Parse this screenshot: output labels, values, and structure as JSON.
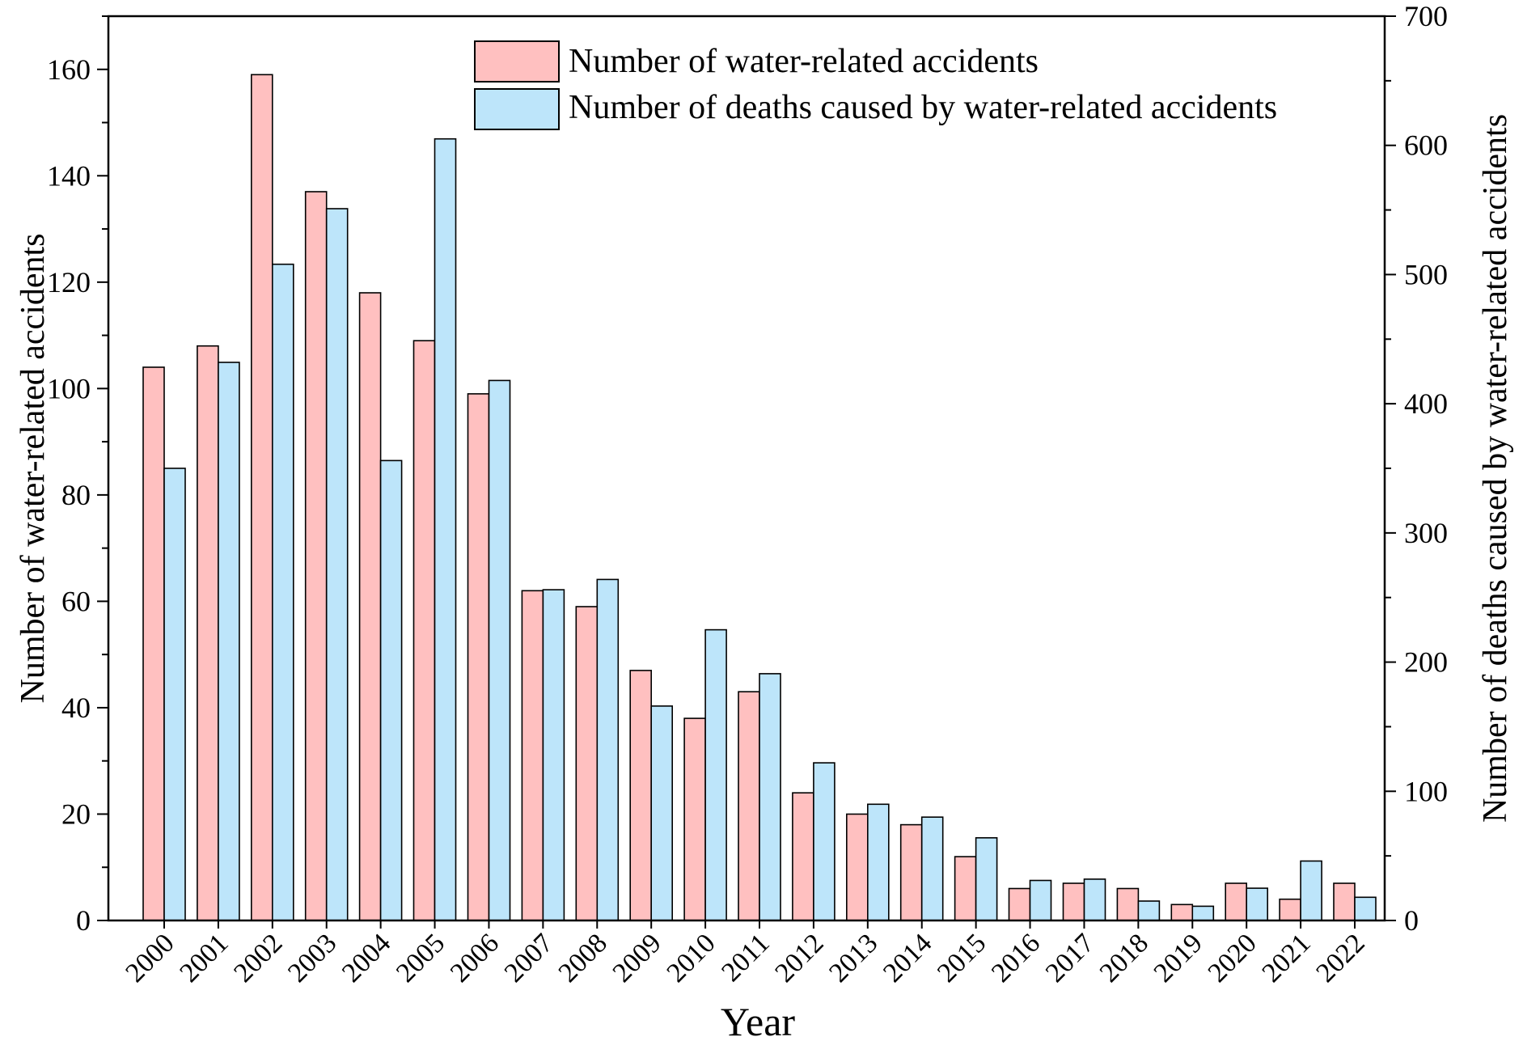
{
  "chart_data": {
    "type": "bar",
    "title": "",
    "xlabel": "Year",
    "ylabel_left": "Number of water-related accidents",
    "ylabel_right": "Number of deaths caused by water-related accidents",
    "ylim_left": [
      0,
      170
    ],
    "ylim_right": [
      0,
      700
    ],
    "yticks_left": [
      0,
      20,
      40,
      60,
      80,
      100,
      120,
      140,
      160
    ],
    "yticks_right": [
      0,
      100,
      200,
      300,
      400,
      500,
      600,
      700
    ],
    "categories": [
      "2000",
      "2001",
      "2002",
      "2003",
      "2004",
      "2005",
      "2006",
      "2007",
      "2008",
      "2009",
      "2010",
      "2011",
      "2012",
      "2013",
      "2014",
      "2015",
      "2016",
      "2017",
      "2018",
      "2019",
      "2020",
      "2021",
      "2022"
    ],
    "series": [
      {
        "name": "Number of water-related accidents",
        "axis": "left",
        "color": "#ffc0c0",
        "values": [
          104,
          108,
          159,
          137,
          118,
          109,
          99,
          62,
          59,
          47,
          38,
          43,
          24,
          20,
          18,
          12,
          6,
          7,
          6,
          3,
          7,
          4,
          7
        ]
      },
      {
        "name": "Number of deaths caused by water-related accidents",
        "axis": "right",
        "color": "#bde5fa",
        "values": [
          350,
          432,
          508,
          551,
          356,
          605,
          418,
          256,
          264,
          166,
          225,
          191,
          122,
          90,
          80,
          64,
          31,
          32,
          15,
          11,
          25,
          46,
          18
        ]
      }
    ],
    "legend_position": "top-center",
    "grid": false
  }
}
